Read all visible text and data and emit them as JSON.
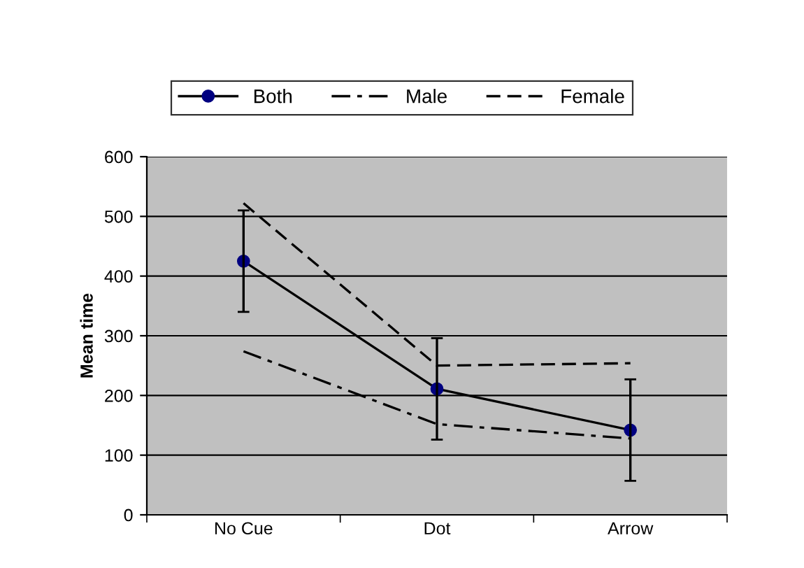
{
  "chart_data": {
    "type": "line",
    "ylabel": "Mean time",
    "categories": [
      "No Cue",
      "Dot",
      "Arrow"
    ],
    "series": [
      {
        "name": "Both",
        "color": "#000000",
        "values": [
          425,
          211,
          142
        ],
        "errors": [
          85,
          85,
          85
        ],
        "marker": "circle",
        "line_style": "solid"
      },
      {
        "name": "Male",
        "color": "#000000",
        "values": [
          274,
          152,
          128
        ],
        "marker": "none",
        "line_style": "dashdot"
      },
      {
        "name": "Female",
        "color": "#000000",
        "values": [
          522,
          250,
          254
        ],
        "marker": "none",
        "line_style": "dashed"
      }
    ],
    "ylim": [
      0,
      600
    ],
    "yticks": [
      0,
      100,
      200,
      300,
      400,
      500,
      600
    ],
    "grid": "y",
    "legend": "top"
  }
}
